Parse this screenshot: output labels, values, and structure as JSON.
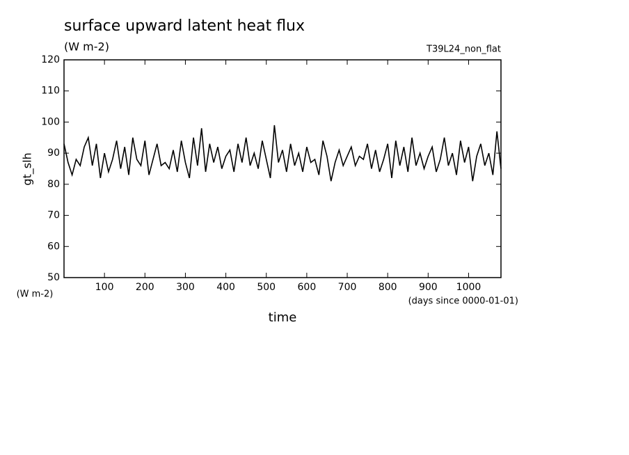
{
  "chart_data": {
    "type": "line",
    "title": "surface upward latent heat flux",
    "subtitle": "(W m-2)",
    "annotation": "T39L24_non_flat",
    "ylabel": "gt_slh",
    "y_unit": "(W m-2)",
    "xlabel": "time",
    "x_unit": "(days since 0000-01-01)",
    "x": [
      0,
      10,
      20,
      30,
      40,
      50,
      60,
      70,
      80,
      90,
      100,
      110,
      120,
      130,
      140,
      150,
      160,
      170,
      180,
      190,
      200,
      210,
      220,
      230,
      240,
      250,
      260,
      270,
      280,
      290,
      300,
      310,
      320,
      330,
      340,
      350,
      360,
      370,
      380,
      390,
      400,
      410,
      420,
      430,
      440,
      450,
      460,
      470,
      480,
      490,
      500,
      510,
      520,
      530,
      540,
      550,
      560,
      570,
      580,
      590,
      600,
      610,
      620,
      630,
      640,
      650,
      660,
      670,
      680,
      690,
      700,
      710,
      720,
      730,
      740,
      750,
      760,
      770,
      780,
      790,
      800,
      810,
      820,
      830,
      840,
      850,
      860,
      870,
      880,
      890,
      900,
      910,
      920,
      930,
      940,
      950,
      960,
      970,
      980,
      990,
      1000,
      1010,
      1020,
      1030,
      1040,
      1050,
      1060,
      1070,
      1080
    ],
    "series": [
      {
        "name": "gt_slh",
        "color": "#000000",
        "values": [
          93,
          87,
          83,
          88,
          86,
          92,
          95,
          86,
          93,
          82,
          90,
          84,
          88,
          94,
          85,
          92,
          83,
          95,
          88,
          86,
          94,
          83,
          88,
          93,
          86,
          87,
          85,
          91,
          84,
          94,
          87,
          82,
          95,
          86,
          98,
          84,
          93,
          87,
          92,
          85,
          89,
          91,
          84,
          93,
          87,
          95,
          86,
          90,
          85,
          94,
          88,
          82,
          99,
          87,
          91,
          84,
          93,
          86,
          90,
          84,
          92,
          87,
          88,
          83,
          94,
          89,
          81,
          87,
          91,
          86,
          89,
          92,
          86,
          89,
          88,
          93,
          85,
          91,
          84,
          88,
          93,
          82,
          94,
          86,
          92,
          84,
          95,
          86,
          90,
          85,
          89,
          92,
          84,
          88,
          95,
          86,
          90,
          83,
          94,
          87,
          92,
          81,
          89,
          93,
          86,
          90,
          83,
          97,
          85
        ]
      }
    ],
    "xlim": [
      0,
      1080
    ],
    "ylim": [
      50,
      120
    ],
    "xticks": [
      100,
      200,
      300,
      400,
      500,
      600,
      700,
      800,
      900,
      1000
    ],
    "yticks": [
      50,
      60,
      70,
      80,
      90,
      100,
      110,
      120
    ]
  }
}
